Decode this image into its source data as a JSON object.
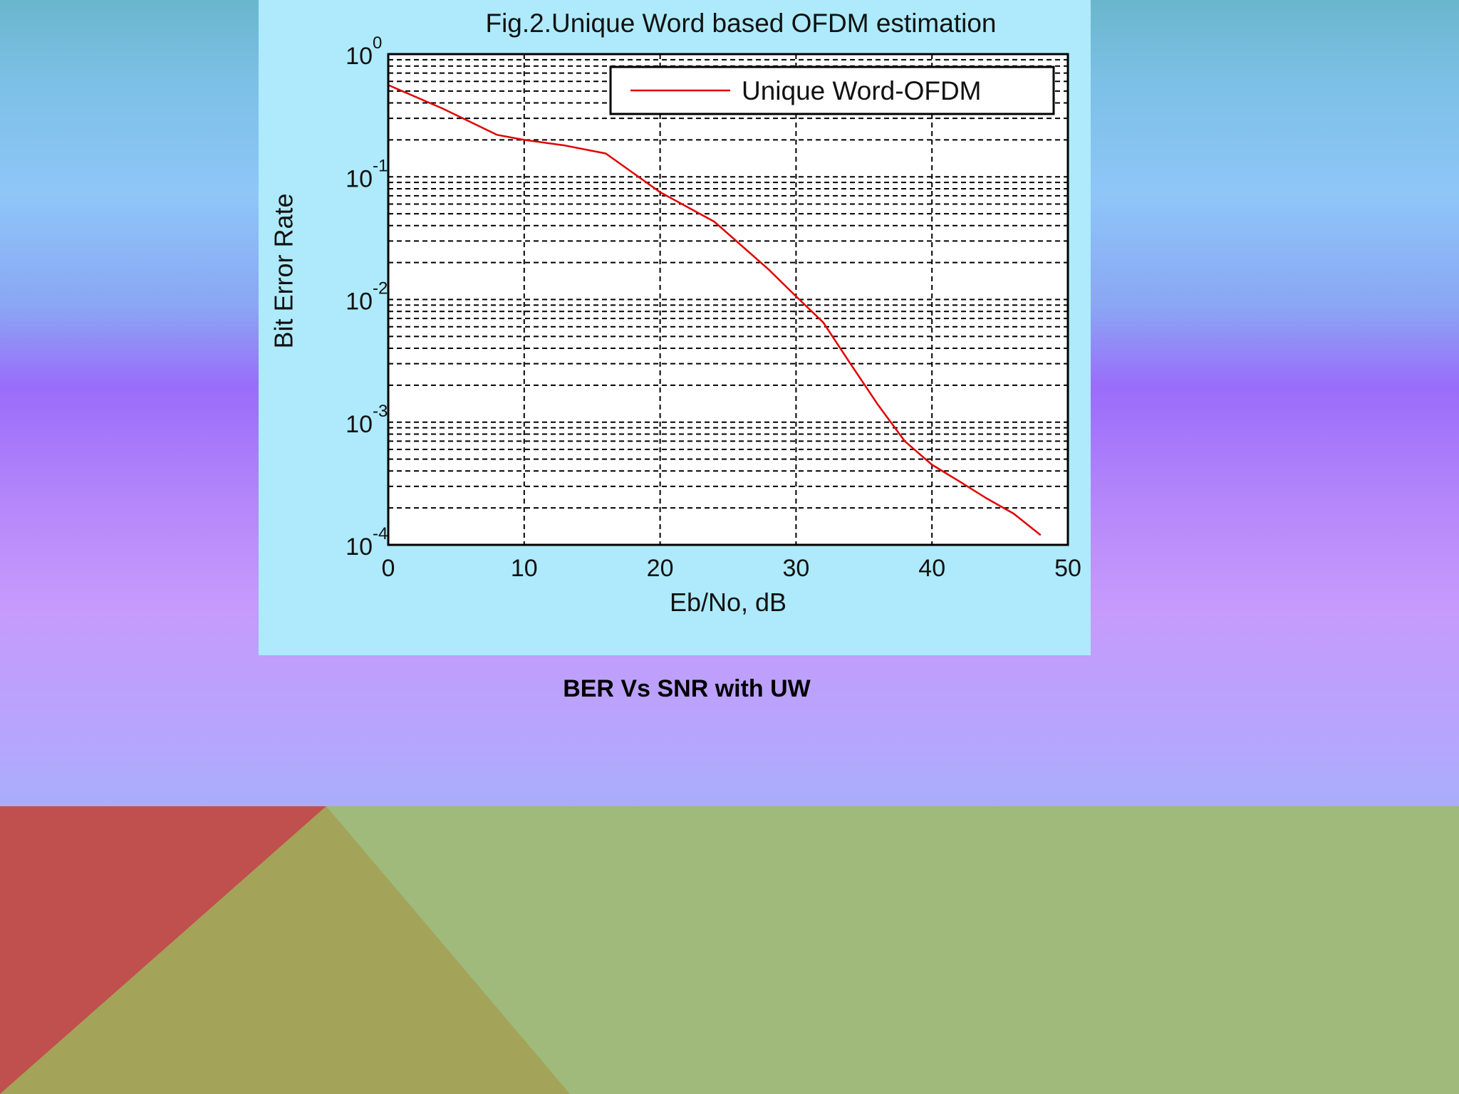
{
  "slide": {
    "caption": "BER Vs SNR with UW",
    "colors": {
      "panel_bg": "#aeeafb",
      "decor_red": "#c0504d",
      "decor_olive": "#a3a35a",
      "decor_green": "#9fba7a"
    }
  },
  "chart_data": {
    "type": "line",
    "title": "Fig.2.Unique Word based OFDM estimation",
    "xlabel": "Eb/No, dB",
    "ylabel": "Bit Error Rate",
    "xlim": [
      0,
      50
    ],
    "ylim": [
      0.0001,
      1
    ],
    "yscale": "log",
    "grid": true,
    "legend_position": "top-right",
    "x_ticks": [
      "0",
      "10",
      "20",
      "30",
      "40",
      "50"
    ],
    "y_ticks": [
      {
        "base": "10",
        "exp": "0"
      },
      {
        "base": "10",
        "exp": "-1"
      },
      {
        "base": "10",
        "exp": "-2"
      },
      {
        "base": "10",
        "exp": "-3"
      },
      {
        "base": "10",
        "exp": "-4"
      }
    ],
    "series": [
      {
        "name": "Unique Word-OFDM",
        "color": "#e00000",
        "x": [
          0,
          4,
          8,
          10,
          13,
          16,
          20,
          24,
          28,
          30,
          32,
          34,
          36,
          38,
          40,
          42,
          44,
          46,
          48
        ],
        "y": [
          0.56,
          0.36,
          0.22,
          0.2,
          0.18,
          0.155,
          0.075,
          0.043,
          0.0175,
          0.0106,
          0.0065,
          0.003,
          0.0014,
          0.0007,
          0.00045,
          0.00033,
          0.00024,
          0.00018,
          0.00012
        ]
      }
    ]
  }
}
